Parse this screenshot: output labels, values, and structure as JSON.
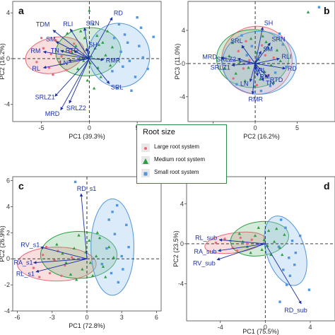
{
  "colors": {
    "large": "#f2a0a0",
    "medium": "#3aa655",
    "small": "#9cc7ee",
    "large_pt": "#e86a7a",
    "medium_pt": "#2e9e46",
    "small_pt": "#4f95df",
    "arrow": "#1a2fa8"
  },
  "legend": {
    "title": "Root size",
    "items": [
      {
        "key": "large",
        "label": "Large root system",
        "shape": "circle"
      },
      {
        "key": "medium",
        "label": "Medium root system",
        "shape": "triangle"
      },
      {
        "key": "small",
        "label": "Small root system",
        "shape": "square"
      }
    ]
  },
  "chart_data": [
    {
      "panel": "a",
      "type": "scatter",
      "xlabel": "PC1 (39.3%)",
      "ylabel": "PC2 (16.2%)",
      "xlim": [
        -8,
        7.5
      ],
      "ylim": [
        -5.5,
        5
      ],
      "xticks": [
        -5,
        0,
        5
      ],
      "yticks": [
        -4,
        0,
        4
      ],
      "ellipses": [
        {
          "group": "large",
          "cx": -3.6,
          "cy": 0.3,
          "rx": 3.1,
          "ry": 1.55,
          "angle": 12
        },
        {
          "group": "medium",
          "cx": -0.1,
          "cy": 0.6,
          "rx": 3.4,
          "ry": 2.1,
          "angle": 5
        },
        {
          "group": "small",
          "cx": 3.1,
          "cy": 0.3,
          "rx": 3.2,
          "ry": 2.8,
          "angle": 15
        }
      ],
      "points": {
        "large": [
          [
            -5.5,
            -0.3
          ],
          [
            -4.8,
            0.9
          ],
          [
            -4.2,
            -0.8
          ],
          [
            -3.5,
            1.6
          ],
          [
            -2.9,
            0.2
          ],
          [
            -2.4,
            -1.0
          ],
          [
            -4.0,
            0.4
          ],
          [
            -5.0,
            1.8
          ],
          [
            -3.1,
            -0.3
          ],
          [
            -2.0,
            0.6
          ],
          [
            -3.8,
            -1.4
          ],
          [
            -1.6,
            1.3
          ]
        ],
        "medium": [
          [
            -1.8,
            0.5
          ],
          [
            -1.2,
            -0.9
          ],
          [
            -0.5,
            1.8
          ],
          [
            0.1,
            -0.4
          ],
          [
            0.6,
            0.9
          ],
          [
            1.2,
            -1.6
          ],
          [
            -0.9,
            2.4
          ],
          [
            0.4,
            3.0
          ],
          [
            1.7,
            0.3
          ],
          [
            -0.2,
            -1.9
          ],
          [
            0.8,
            2.0
          ],
          [
            -1.4,
            1.1
          ],
          [
            1.4,
            1.4
          ],
          [
            -0.6,
            -0.2
          ],
          [
            2.2,
            -0.6
          ],
          [
            0.2,
            0.2
          ],
          [
            -2.3,
            2.2
          ],
          [
            0.9,
            -0.8
          ],
          [
            1.9,
            2.4
          ],
          [
            -0.3,
            0.8
          ],
          [
            0.5,
            -2.6
          ],
          [
            1.0,
            1.2
          ],
          [
            -1.0,
            0.0
          ],
          [
            2.4,
            1.0
          ],
          [
            0.0,
            4.2
          ],
          [
            6.3,
            5.3
          ]
        ],
        "small": [
          [
            2.4,
            -1.1
          ],
          [
            3.3,
            0.6
          ],
          [
            4.2,
            -0.2
          ],
          [
            5.2,
            1.1
          ],
          [
            3.7,
            2.1
          ],
          [
            4.8,
            -1.6
          ],
          [
            2.9,
            -2.6
          ],
          [
            5.6,
            0.1
          ],
          [
            4.0,
            1.4
          ],
          [
            3.1,
            3.0
          ],
          [
            5.4,
            2.7
          ],
          [
            2.6,
            1.8
          ],
          [
            4.4,
            -2.8
          ],
          [
            3.5,
            -0.7
          ],
          [
            6.1,
            -0.9
          ],
          [
            5.0,
            3.6
          ],
          [
            5.9,
            5.9
          ],
          [
            6.7,
            1.9
          ]
        ]
      },
      "vectors": [
        {
          "name": "TDM",
          "x": -3.8,
          "y": 2.5
        },
        {
          "name": "RLI",
          "x": -2.0,
          "y": 2.6
        },
        {
          "name": "SM",
          "x": -3.5,
          "y": 1.5
        },
        {
          "name": "RM",
          "x": -4.8,
          "y": 0.6
        },
        {
          "name": "TN",
          "x": -3.0,
          "y": 0.7
        },
        {
          "name": "RTD",
          "x": -1.6,
          "y": 0.7
        },
        {
          "name": "LN",
          "x": -2.2,
          "y": -0.2
        },
        {
          "name": "RL",
          "x": -4.8,
          "y": -0.8
        },
        {
          "name": "SRN",
          "x": -0.5,
          "y": 2.7
        },
        {
          "name": "RD",
          "x": 2.4,
          "y": 3.6
        },
        {
          "name": "SH",
          "x": -0.3,
          "y": 0.9
        },
        {
          "name": "RMR",
          "x": 1.5,
          "y": -0.1
        },
        {
          "name": "SRL",
          "x": 2.1,
          "y": -2.2
        },
        {
          "name": "SRLZ1",
          "x": -3.6,
          "y": -3.3
        },
        {
          "name": "SRLZ2",
          "x": -2.1,
          "y": -3.9
        },
        {
          "name": "MRD",
          "x": -3.0,
          "y": -4.5
        }
      ]
    },
    {
      "panel": "b",
      "type": "scatter",
      "xlabel": "PC2 (16.2%)",
      "ylabel": "PC3 (11.0%)",
      "xlim": [
        -8,
        9.5
      ],
      "ylim": [
        -7,
        7.5
      ],
      "xticks": [
        -5,
        0,
        5
      ],
      "yticks": [
        -4,
        0,
        4
      ],
      "ellipses": [
        {
          "group": "large",
          "cx": 0.2,
          "cy": 0.4,
          "rx": 4.2,
          "ry": 4.1,
          "angle": 0
        },
        {
          "group": "medium",
          "cx": -0.3,
          "cy": 0.6,
          "rx": 4.3,
          "ry": 3.5,
          "angle": 0
        },
        {
          "group": "small",
          "cx": 0.5,
          "cy": 0.1,
          "rx": 4.4,
          "ry": 3.8,
          "angle": 0
        }
      ],
      "points": {
        "large": [
          [
            -2.0,
            1.5
          ],
          [
            -1.4,
            -0.6
          ],
          [
            0.8,
            2.2
          ],
          [
            1.6,
            -1.4
          ],
          [
            -0.7,
            0.4
          ],
          [
            2.2,
            0.7
          ],
          [
            -2.6,
            -1.8
          ],
          [
            0.2,
            -2.6
          ],
          [
            1.2,
            1.0
          ],
          [
            -1.1,
            2.7
          ]
        ],
        "medium": [
          [
            -3.1,
            0.9
          ],
          [
            -2.3,
            -1.2
          ],
          [
            -1.5,
            2.0
          ],
          [
            -0.8,
            -0.5
          ],
          [
            0.1,
            1.3
          ],
          [
            0.6,
            -1.9
          ],
          [
            1.3,
            2.6
          ],
          [
            1.9,
            -0.2
          ],
          [
            -0.5,
            3.0
          ],
          [
            2.6,
            1.6
          ],
          [
            -1.8,
            0.2
          ],
          [
            0.4,
            0.5
          ],
          [
            -0.1,
            -2.8
          ],
          [
            1.1,
            -1.0
          ],
          [
            -2.7,
            2.5
          ],
          [
            2.2,
            -2.3
          ],
          [
            -1.2,
            -2.1
          ],
          [
            0.9,
            3.3
          ],
          [
            -3.6,
            -0.6
          ],
          [
            3.0,
            0.3
          ],
          [
            0.0,
            -0.1
          ],
          [
            6.3,
            6.2
          ]
        ],
        "small": [
          [
            -1.0,
            1.0
          ],
          [
            0.3,
            -0.9
          ],
          [
            1.5,
            1.8
          ],
          [
            2.4,
            -1.1
          ],
          [
            -2.2,
            -2.5
          ],
          [
            3.3,
            2.3
          ],
          [
            -0.4,
            2.1
          ],
          [
            1.8,
            -2.7
          ],
          [
            3.7,
            -0.4
          ],
          [
            -1.6,
            3.4
          ],
          [
            2.9,
            3.6
          ],
          [
            0.7,
            -3.3
          ],
          [
            7.6,
            6.8
          ]
        ]
      },
      "vectors": [
        {
          "name": "SH",
          "x": 0.9,
          "y": 4.4
        },
        {
          "name": "SRN",
          "x": 1.8,
          "y": 2.5
        },
        {
          "name": "SRL",
          "x": -1.6,
          "y": 2.2
        },
        {
          "name": "SM",
          "x": 0.7,
          "y": 1.5
        },
        {
          "name": "MRD",
          "x": -4.1,
          "y": 0.7
        },
        {
          "name": "SRLZ2",
          "x": -2.1,
          "y": 0.6
        },
        {
          "name": "SRLZ1",
          "x": -2.8,
          "y": -0.2
        },
        {
          "name": "RLI",
          "x": 2.9,
          "y": 0.6
        },
        {
          "name": "RD",
          "x": 3.6,
          "y": -0.6
        },
        {
          "name": "RL",
          "x": 0.1,
          "y": -0.8
        },
        {
          "name": "RM",
          "x": 0.3,
          "y": -1.5
        },
        {
          "name": "TN",
          "x": 1.0,
          "y": -2.1
        },
        {
          "name": "LN",
          "x": -0.6,
          "y": -2.2
        },
        {
          "name": "RTD",
          "x": 1.5,
          "y": -1.7
        },
        {
          "name": "RMR",
          "x": -0.3,
          "y": -3.7
        }
      ]
    },
    {
      "panel": "c",
      "type": "scatter",
      "xlabel": "PC1 (72.8%)",
      "ylabel": "PC2 (26.9%)",
      "xlim": [
        -6.4,
        6.4
      ],
      "ylim": [
        -4,
        6.3
      ],
      "xticks": [
        -6,
        -3,
        0,
        3,
        6
      ],
      "yticks": [
        -4,
        -2,
        0,
        2,
        4,
        6
      ],
      "ellipses": [
        {
          "group": "large",
          "cx": -2.6,
          "cy": -0.4,
          "rx": 3.4,
          "ry": 1.3,
          "angle": 0
        },
        {
          "group": "medium",
          "cx": -0.7,
          "cy": 0.3,
          "rx": 3.3,
          "ry": 1.8,
          "angle": 0
        },
        {
          "group": "small",
          "cx": 2.2,
          "cy": 0.9,
          "rx": 1.85,
          "ry": 3.7,
          "angle": 0
        }
      ],
      "points": {
        "large": [
          [
            -4.6,
            -0.7
          ],
          [
            -3.8,
            0.3
          ],
          [
            -3.2,
            -1.1
          ],
          [
            -2.5,
            0.6
          ],
          [
            -1.9,
            -0.5
          ],
          [
            -4.1,
            -1.4
          ],
          [
            -2.8,
            -0.1
          ],
          [
            -1.3,
            0.1
          ],
          [
            -3.5,
            0.9
          ],
          [
            -2.2,
            -1.3
          ]
        ],
        "medium": [
          [
            -2.6,
            1.1
          ],
          [
            -1.8,
            -0.3
          ],
          [
            -1.1,
            0.8
          ],
          [
            -0.4,
            -0.8
          ],
          [
            0.2,
            1.4
          ],
          [
            0.8,
            0.2
          ],
          [
            1.4,
            -0.6
          ],
          [
            -0.7,
            1.8
          ],
          [
            0.5,
            -1.3
          ],
          [
            -1.4,
            -1.2
          ],
          [
            1.9,
            0.9
          ],
          [
            -0.1,
            0.5
          ],
          [
            1.1,
            1.6
          ],
          [
            -2.1,
            0.4
          ],
          [
            0.3,
            -0.3
          ],
          [
            1.6,
            -1.4
          ],
          [
            -0.9,
            -1.6
          ],
          [
            2.3,
            0.1
          ],
          [
            0.9,
            2.0
          ]
        ],
        "small": [
          [
            1.7,
            0.8
          ],
          [
            2.4,
            1.9
          ],
          [
            3.0,
            0.2
          ],
          [
            2.1,
            -1.1
          ],
          [
            3.4,
            2.6
          ],
          [
            1.9,
            3.0
          ],
          [
            2.7,
            -1.8
          ],
          [
            3.6,
            0.9
          ],
          [
            2.2,
            3.6
          ],
          [
            1.3,
            -0.4
          ],
          [
            3.1,
            -0.8
          ],
          [
            2.6,
            4.1
          ],
          [
            -1.0,
            5.9
          ]
        ]
      },
      "vectors": [
        {
          "name": "RD_s1",
          "x": -0.5,
          "y": 5.0
        },
        {
          "name": "RV_s1",
          "x": -4.0,
          "y": 0.9
        },
        {
          "name": "RA_s1",
          "x": -4.6,
          "y": -0.3
        },
        {
          "name": "RL_s1",
          "x": -4.4,
          "y": -1.0
        }
      ]
    },
    {
      "panel": "d",
      "type": "scatter",
      "xlabel": "PC1 (75.5%)",
      "ylabel": "PC2 (23.5%)",
      "xlim": [
        -7,
        6.2
      ],
      "ylim": [
        -7.7,
        6.7
      ],
      "xticks": [
        -4,
        0,
        4
      ],
      "yticks": [
        -4,
        0,
        4
      ],
      "ellipses": [
        {
          "group": "large",
          "cx": -2.7,
          "cy": 0.1,
          "rx": 2.7,
          "ry": 1.0,
          "angle": 8
        },
        {
          "group": "medium",
          "cx": -0.5,
          "cy": 0.5,
          "rx": 2.6,
          "ry": 1.7,
          "angle": 8
        },
        {
          "group": "small",
          "cx": 1.8,
          "cy": -0.7,
          "rx": 1.7,
          "ry": 3.6,
          "angle": 18
        }
      ],
      "points": {
        "large": [
          [
            -4.4,
            0.1
          ],
          [
            -3.6,
            0.5
          ],
          [
            -2.9,
            -0.4
          ],
          [
            -2.2,
            0.6
          ],
          [
            -1.6,
            0.0
          ],
          [
            -3.1,
            0.3
          ],
          [
            -2.5,
            -0.7
          ],
          [
            -1.2,
            0.4
          ]
        ],
        "medium": [
          [
            -2.3,
            1.0
          ],
          [
            -1.6,
            -0.3
          ],
          [
            -0.9,
            0.8
          ],
          [
            -0.3,
            -0.6
          ],
          [
            0.3,
            1.3
          ],
          [
            0.8,
            0.2
          ],
          [
            1.3,
            -0.4
          ],
          [
            -0.6,
            1.6
          ],
          [
            0.5,
            -1.1
          ],
          [
            -1.3,
            -0.9
          ],
          [
            1.7,
            0.9
          ],
          [
            -0.1,
            0.4
          ],
          [
            1.0,
            1.5
          ],
          [
            0.2,
            -0.2
          ],
          [
            1.5,
            -1.1
          ],
          [
            -2.0,
            0.2
          ]
        ],
        "small": [
          [
            1.2,
            -0.3
          ],
          [
            1.8,
            1.6
          ],
          [
            2.4,
            0.3
          ],
          [
            2.1,
            -1.4
          ],
          [
            1.6,
            -2.6
          ],
          [
            2.7,
            -0.9
          ],
          [
            1.4,
            2.4
          ],
          [
            2.2,
            -3.2
          ],
          [
            3.1,
            0.8
          ],
          [
            1.9,
            -4.1
          ],
          [
            2.6,
            -2.1
          ],
          [
            3.9,
            -4.6
          ],
          [
            1.3,
            -5.8
          ]
        ]
      },
      "vectors": [
        {
          "name": "RL_sub",
          "x": -4.1,
          "y": 0.4
        },
        {
          "name": "RA_sub",
          "x": -4.2,
          "y": -0.7
        },
        {
          "name": "RV_sub",
          "x": -4.3,
          "y": -1.6
        },
        {
          "name": "RD_sub",
          "x": 3.2,
          "y": -6.0
        }
      ]
    }
  ]
}
